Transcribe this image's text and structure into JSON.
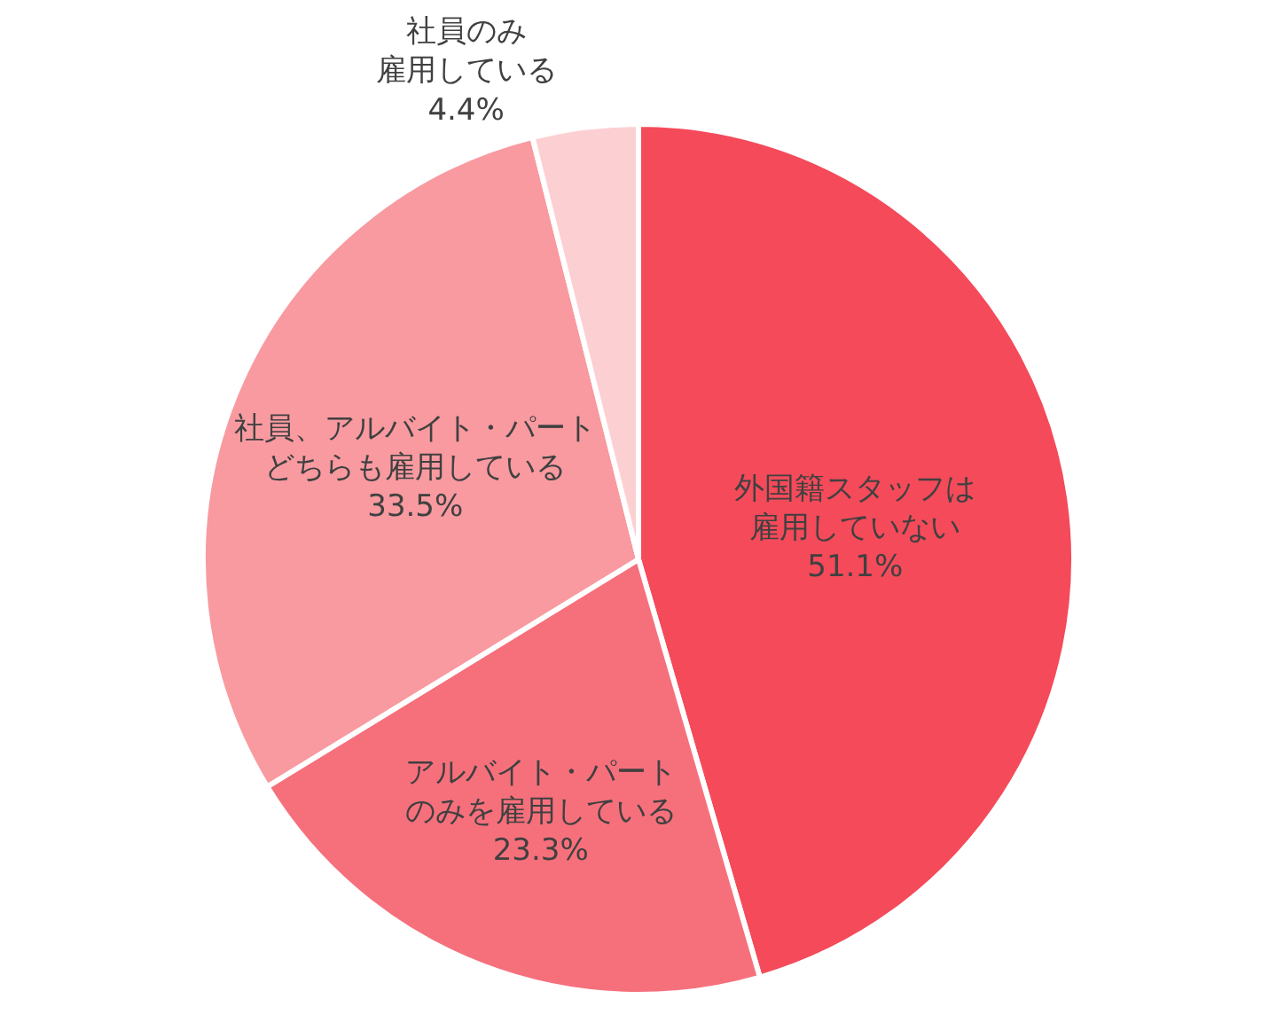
{
  "chart_data": {
    "type": "pie",
    "categories": [
      "外国籍スタッフは雇用していない",
      "アルバイト・パートのみを雇用している",
      "社員、アルバイト・パートどちらも雇用している",
      "社員のみ雇用している"
    ],
    "values": [
      51.1,
      23.3,
      33.5,
      4.4
    ],
    "value_labels": [
      "51.1%",
      "23.3%",
      "33.5%",
      "4.4%"
    ],
    "colors": [
      "#f44a5a",
      "#f6707c",
      "#f89aa0",
      "#fcd0d3"
    ]
  }
}
